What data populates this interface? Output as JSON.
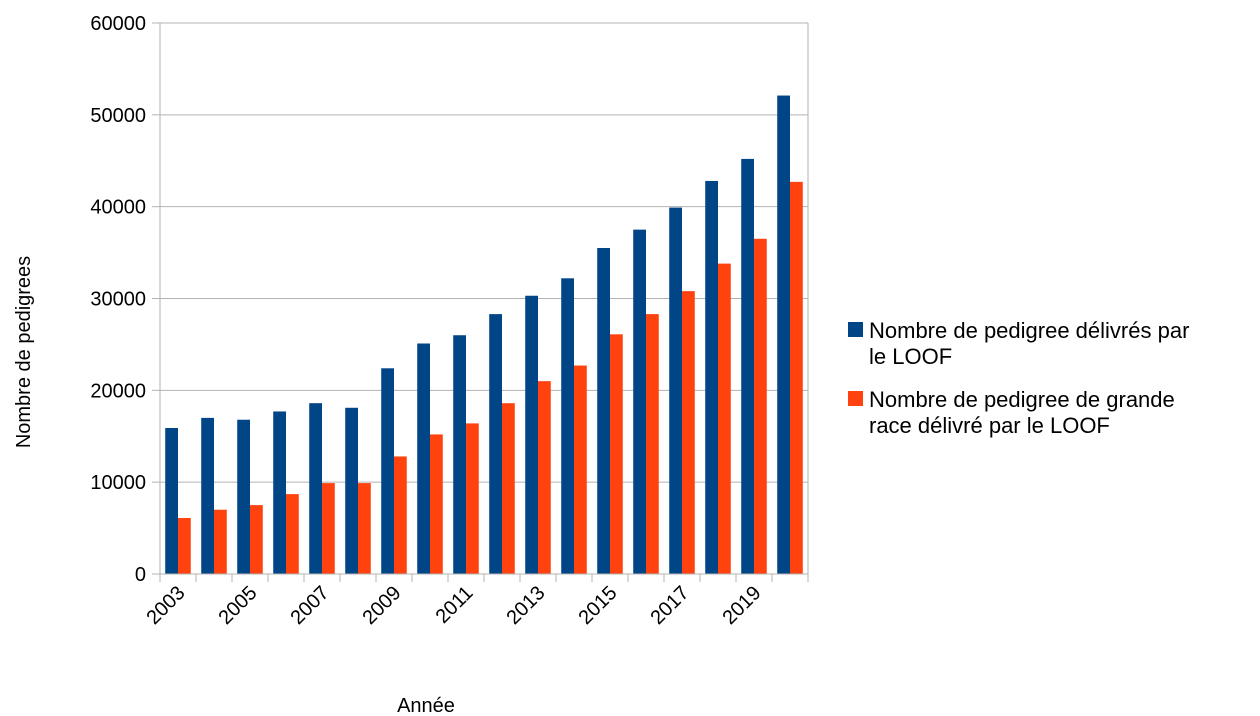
{
  "chart_data": {
    "type": "bar",
    "title": "",
    "xlabel": "Année",
    "ylabel": "Nombre de pedigrees",
    "ylim": [
      0,
      60000
    ],
    "yticks": [
      "0",
      "10000",
      "20000",
      "30000",
      "40000",
      "50000",
      "60000"
    ],
    "categories": [
      "2003",
      "2004",
      "2005",
      "2006",
      "2007",
      "2008",
      "2009",
      "2010",
      "2011",
      "2012",
      "2013",
      "2014",
      "2015",
      "2016",
      "2017",
      "2018",
      "2019",
      "2020"
    ],
    "visible_xtick_labels": [
      "2003",
      "2005",
      "2007",
      "2009",
      "2011",
      "2013",
      "2015",
      "2017",
      "2019"
    ],
    "grid": true,
    "legend_position": "right",
    "series": [
      {
        "name": "Nombre de pedigree délivrés par le LOOF",
        "legend_lines": [
          "Nombre de pedigree délivrés par",
          "le LOOF"
        ],
        "color": "#004586",
        "values": [
          15900,
          17000,
          16800,
          17700,
          18600,
          18100,
          22400,
          25100,
          26000,
          28300,
          30300,
          32200,
          35500,
          37500,
          39900,
          42800,
          45200,
          52100
        ]
      },
      {
        "name": "Nombre de pedigree de grande race délivré par le LOOF",
        "legend_lines": [
          "Nombre de pedigree de grande",
          "race délivré par le LOOF"
        ],
        "color": "#ff420e",
        "values": [
          6100,
          7000,
          7500,
          8700,
          9900,
          9900,
          12800,
          15200,
          16400,
          18600,
          21000,
          22700,
          26100,
          28300,
          30800,
          33800,
          36500,
          42700
        ]
      }
    ]
  }
}
